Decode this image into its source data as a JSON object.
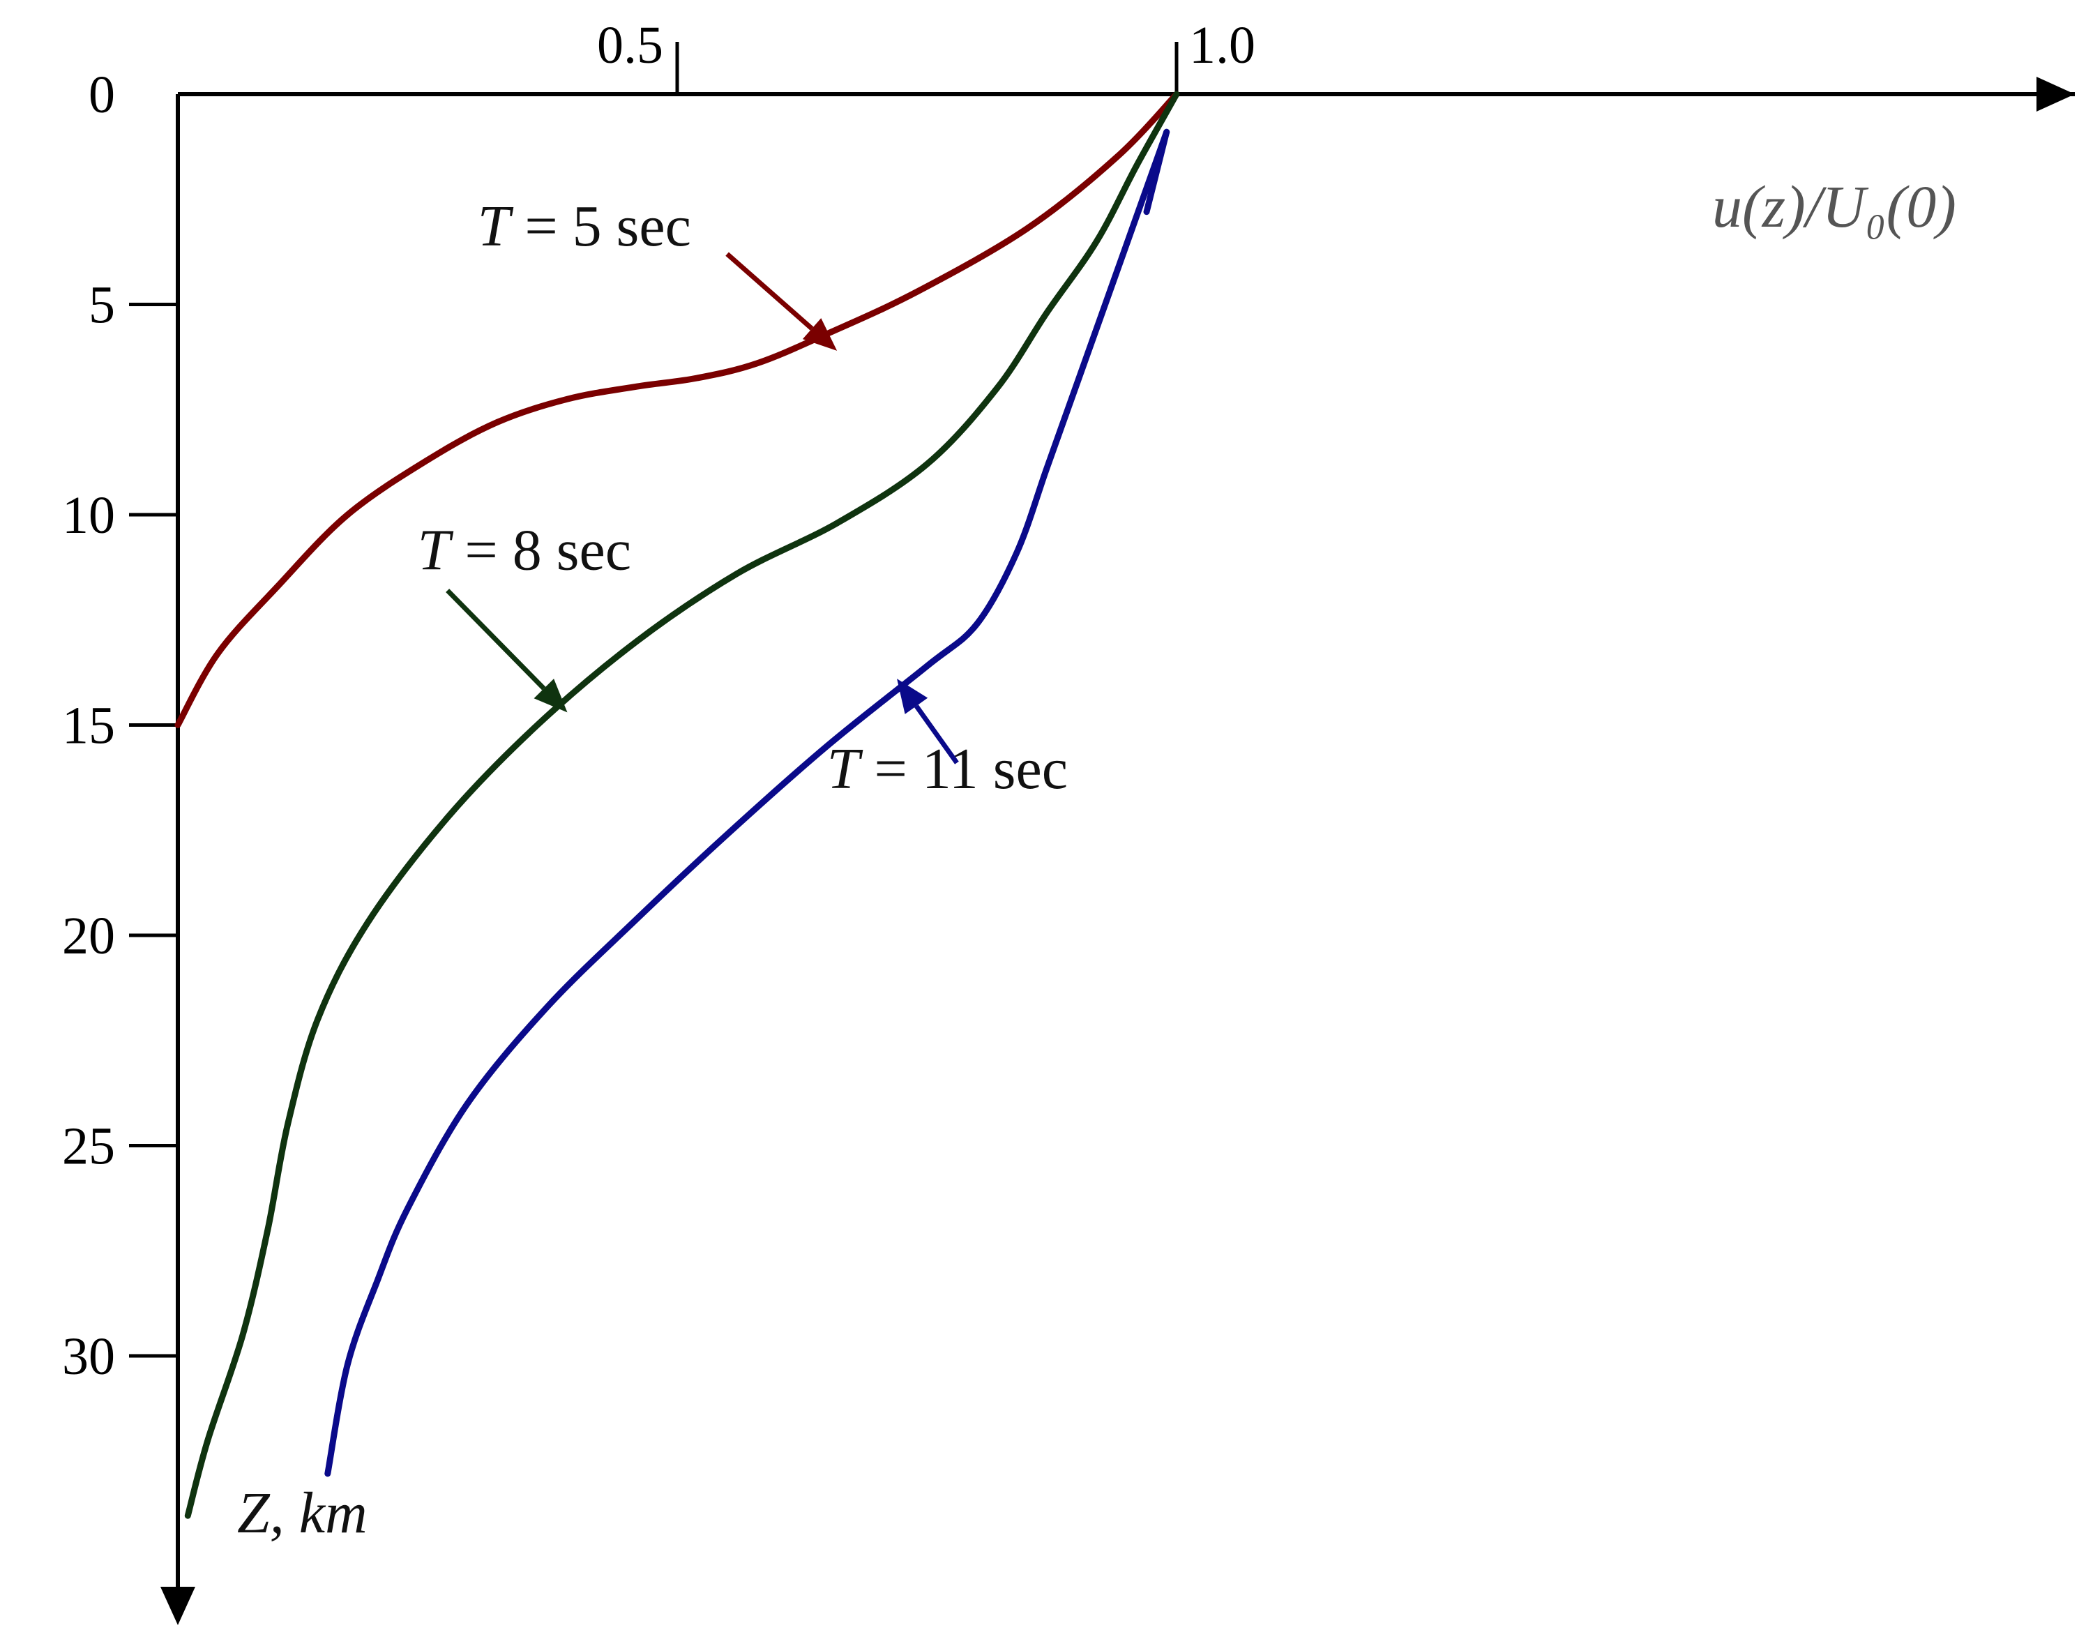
{
  "chart_data": {
    "type": "line",
    "xlabel": "u(z)/U₀(0)",
    "ylabel": "Z, km",
    "xlim": [
      0,
      2.05
    ],
    "ylim": [
      0,
      35
    ],
    "x_ticks": [
      0.5,
      1.0
    ],
    "x_tick_labels": [
      "0.5",
      "1.0"
    ],
    "y_ticks": [
      0,
      5,
      10,
      15,
      20,
      25,
      30
    ],
    "y_tick_labels": [
      "0",
      "5",
      "10",
      "15",
      "20",
      "25",
      "30"
    ],
    "y_inverted": true,
    "colors": {
      "t5": "#7a0000",
      "t8": "#0f330f",
      "t11": "#0a0a8a"
    },
    "series": [
      {
        "name": "T = 5 sec",
        "label_parts": [
          "T",
          " = 5 sec"
        ],
        "color": "#7a0000",
        "points": [
          [
            1.0,
            0
          ],
          [
            0.94,
            1.5
          ],
          [
            0.85,
            3.2
          ],
          [
            0.74,
            4.7
          ],
          [
            0.65,
            5.7
          ],
          [
            0.58,
            6.4
          ],
          [
            0.52,
            6.75
          ],
          [
            0.46,
            6.95
          ],
          [
            0.39,
            7.25
          ],
          [
            0.32,
            7.8
          ],
          [
            0.25,
            8.7
          ],
          [
            0.17,
            10.0
          ],
          [
            0.1,
            11.7
          ],
          [
            0.04,
            13.3
          ],
          [
            0.0,
            15.0
          ]
        ],
        "label_x": 0.3,
        "label_z": 3.6,
        "arrow_from": [
          0.55,
          3.8
        ],
        "arrow_to": [
          0.66,
          6.1
        ]
      },
      {
        "name": "T = 8 sec",
        "label_parts": [
          "T",
          " = 8 sec"
        ],
        "color": "#0f330f",
        "points": [
          [
            1.0,
            0
          ],
          [
            0.96,
            1.7
          ],
          [
            0.92,
            3.5
          ],
          [
            0.87,
            5.2
          ],
          [
            0.82,
            7.0
          ],
          [
            0.75,
            8.8
          ],
          [
            0.66,
            10.2
          ],
          [
            0.56,
            11.4
          ],
          [
            0.46,
            13.0
          ],
          [
            0.36,
            15.0
          ],
          [
            0.27,
            17.2
          ],
          [
            0.19,
            19.7
          ],
          [
            0.14,
            22.0
          ],
          [
            0.11,
            24.5
          ],
          [
            0.09,
            27.0
          ],
          [
            0.065,
            29.5
          ],
          [
            0.03,
            32.0
          ],
          [
            0.01,
            33.8
          ]
        ],
        "label_x": 0.24,
        "label_z": 11.3,
        "arrow_from": [
          0.27,
          11.8
        ],
        "arrow_to": [
          0.39,
          14.7
        ]
      },
      {
        "name": "T = 11 sec",
        "label_parts": [
          "T",
          " = 11 sec"
        ],
        "color": "#0a0a8a",
        "points": [
          [
            0.99,
            0.9
          ],
          [
            0.96,
            2.9
          ],
          [
            0.93,
            4.9
          ],
          [
            0.9,
            6.9
          ],
          [
            0.87,
            8.9
          ],
          [
            0.84,
            10.9
          ],
          [
            0.8,
            12.6
          ],
          [
            0.75,
            13.6
          ],
          [
            0.65,
            15.5
          ],
          [
            0.55,
            17.6
          ],
          [
            0.46,
            19.6
          ],
          [
            0.37,
            21.7
          ],
          [
            0.29,
            24.0
          ],
          [
            0.23,
            26.5
          ],
          [
            0.2,
            28.2
          ],
          [
            0.17,
            30.2
          ],
          [
            0.15,
            32.8
          ]
        ],
        "hook": [
          [
            0.99,
            0.9
          ],
          [
            0.97,
            2.3
          ]
        ],
        "label_x": 0.65,
        "label_z": 16.5,
        "arrow_from": [
          0.78,
          15.9
        ],
        "arrow_to": [
          0.72,
          13.9
        ]
      }
    ]
  }
}
